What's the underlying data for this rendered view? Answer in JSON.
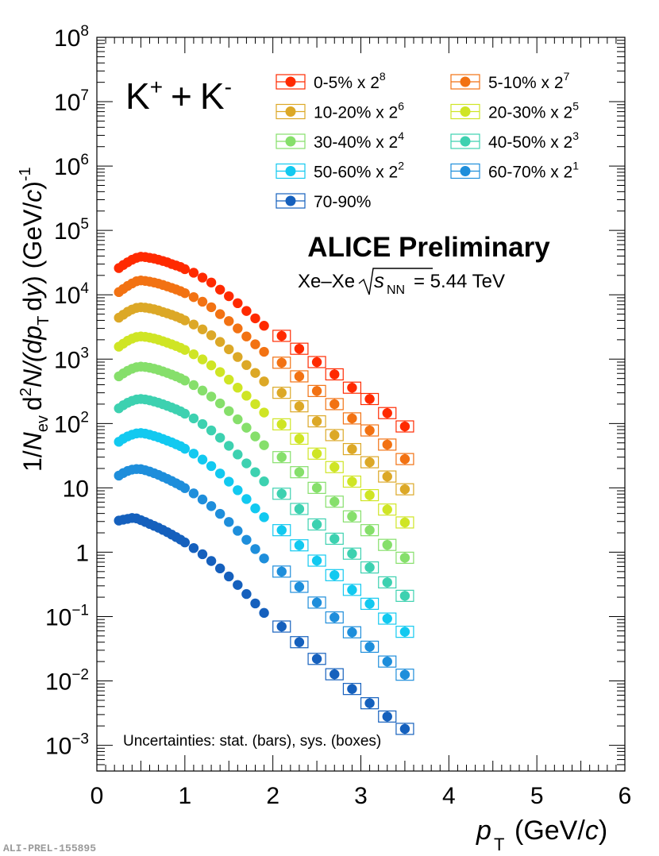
{
  "chart_data": {
    "type": "scatter",
    "title": "K+ + K-",
    "title_parts": {
      "a": "K",
      "a_sup": "+",
      "op": "+",
      "b": "K",
      "b_sup": "-"
    },
    "experiment": "ALICE Preliminary",
    "system": {
      "pre": "Xe–Xe",
      "s": "s",
      "s_sub": "NN",
      "post": "= 5.44 TeV"
    },
    "xlabel": {
      "p": "p",
      "sub": "T",
      "unit_pre": "(GeV/",
      "c": "c",
      "unit_post": ")"
    },
    "ylabel": {
      "one": "1/",
      "N": "N",
      "ev": "ev",
      "d": "d",
      "two": "2",
      "N2": "N/(d",
      "p": "p",
      "T": "T",
      "dy_pre": "d",
      "y": "y",
      "unit": ") (GeV/",
      "c": "c",
      "close": ")",
      "minus1": "-1"
    },
    "xlim": [
      0,
      6
    ],
    "ylim_log10": [
      -3.4,
      8
    ],
    "xticks": [
      {
        "v": 0,
        "label": "0"
      },
      {
        "v": 1,
        "label": "1"
      },
      {
        "v": 2,
        "label": "2"
      },
      {
        "v": 3,
        "label": "3"
      },
      {
        "v": 4,
        "label": "4"
      },
      {
        "v": 5,
        "label": "5"
      },
      {
        "v": 6,
        "label": "6"
      }
    ],
    "yticks": [
      {
        "e": 8,
        "base": "10",
        "sup": "8"
      },
      {
        "e": 7,
        "base": "10",
        "sup": "7"
      },
      {
        "e": 6,
        "base": "10",
        "sup": "6"
      },
      {
        "e": 5,
        "base": "10",
        "sup": "5"
      },
      {
        "e": 4,
        "base": "10",
        "sup": "4"
      },
      {
        "e": 3,
        "base": "10",
        "sup": "3"
      },
      {
        "e": 2,
        "base": "10",
        "sup": "2"
      },
      {
        "e": 1,
        "base": "10",
        "sup": ""
      },
      {
        "e": 0,
        "base": "1",
        "sup": ""
      },
      {
        "e": -1,
        "base": "10",
        "sup": "−1"
      },
      {
        "e": -2,
        "base": "10",
        "sup": "−2"
      },
      {
        "e": -3,
        "base": "10",
        "sup": "−3"
      }
    ],
    "x_points": [
      0.25,
      0.3,
      0.35,
      0.4,
      0.45,
      0.5,
      0.55,
      0.6,
      0.65,
      0.7,
      0.75,
      0.8,
      0.85,
      0.9,
      0.95,
      1.0,
      1.1,
      1.2,
      1.3,
      1.4,
      1.5,
      1.6,
      1.7,
      1.8,
      1.9,
      2.1,
      2.3,
      2.5,
      2.7,
      2.9,
      3.1,
      3.3,
      3.5
    ],
    "series": [
      {
        "name": "0-5% x 2",
        "sup": "8",
        "color": "#ff2a00",
        "values": [
          26000,
          29000,
          32000,
          35000,
          37500,
          39000,
          38500,
          37500,
          36500,
          35000,
          33500,
          32000,
          30000,
          28500,
          27000,
          25000,
          22000,
          18500,
          15500,
          12000,
          9500,
          7400,
          5600,
          4300,
          3300,
          2300,
          1450,
          900,
          580,
          360,
          240,
          145,
          90
        ],
        "sys_from_index": 25
      },
      {
        "name": "5-10% x 2",
        "sup": "7",
        "color": "#f27213",
        "values": [
          11000,
          12300,
          13700,
          15000,
          16200,
          16700,
          16400,
          16000,
          15500,
          14900,
          14200,
          13500,
          12800,
          12100,
          11400,
          10600,
          9200,
          7800,
          6400,
          5000,
          3900,
          3000,
          2250,
          1700,
          1300,
          880,
          540,
          320,
          200,
          120,
          78,
          47,
          28
        ],
        "sys_from_index": 25
      },
      {
        "name": "10-20% x 2",
        "sup": "6",
        "color": "#dca827",
        "values": [
          4400,
          4900,
          5450,
          5900,
          6250,
          6400,
          6300,
          6150,
          5950,
          5700,
          5400,
          5150,
          4880,
          4600,
          4320,
          4000,
          3450,
          2900,
          2350,
          1850,
          1420,
          1080,
          810,
          610,
          450,
          300,
          185,
          108,
          66,
          40,
          25,
          15,
          9.5
        ],
        "sys_from_index": 25
      },
      {
        "name": "20-30% x 2",
        "sup": "5",
        "color": "#cfe525",
        "values": [
          1560,
          1740,
          1930,
          2080,
          2200,
          2250,
          2220,
          2160,
          2090,
          2000,
          1900,
          1800,
          1700,
          1600,
          1500,
          1390,
          1190,
          990,
          800,
          630,
          480,
          360,
          270,
          200,
          148,
          97,
          58,
          34,
          21,
          12.5,
          7.7,
          4.6,
          2.9
        ],
        "sys_from_index": 25
      },
      {
        "name": "30-40% x 2",
        "sup": "4",
        "color": "#86df6b",
        "values": [
          540,
          600,
          660,
          710,
          750,
          765,
          755,
          735,
          710,
          680,
          645,
          610,
          575,
          540,
          505,
          465,
          395,
          325,
          262,
          205,
          156,
          116,
          86,
          63,
          46,
          30,
          17.5,
          10,
          6.1,
          3.6,
          2.2,
          1.3,
          0.82
        ],
        "sys_from_index": 25
      },
      {
        "name": "40-50% x 2",
        "sup": "3",
        "color": "#3dd1b0",
        "values": [
          172,
          192,
          210,
          225,
          236,
          240,
          236,
          229,
          220,
          210,
          199,
          188,
          177,
          166,
          155,
          142,
          120,
          98,
          78,
          60,
          45,
          33,
          24,
          17.5,
          12.6,
          8.1,
          4.7,
          2.7,
          1.62,
          0.95,
          0.58,
          0.34,
          0.21
        ],
        "sys_from_index": 25
      },
      {
        "name": "50-60% x 2",
        "sup": "2",
        "color": "#12c9f0",
        "values": [
          52,
          58,
          63,
          67,
          70,
          71,
          69.5,
          67,
          64,
          61,
          57.5,
          54,
          51,
          47.5,
          44.5,
          40.5,
          34,
          27.5,
          21.8,
          16.7,
          12.5,
          9.2,
          6.7,
          4.8,
          3.5,
          2.2,
          1.28,
          0.74,
          0.44,
          0.26,
          0.158,
          0.093,
          0.058
        ],
        "sys_from_index": 25
      },
      {
        "name": "60-70% x 2",
        "sup": "1",
        "color": "#1e8edb",
        "values": [
          15.5,
          17,
          18.3,
          19.2,
          19.6,
          19.5,
          18.8,
          17.9,
          16.9,
          15.9,
          14.8,
          13.8,
          12.8,
          11.8,
          10.9,
          9.9,
          8.2,
          6.6,
          5.2,
          3.95,
          2.95,
          2.15,
          1.56,
          1.12,
          0.8,
          0.5,
          0.29,
          0.165,
          0.097,
          0.057,
          0.034,
          0.02,
          0.0125
        ],
        "sys_from_index": 25
      },
      {
        "name": "70-90%",
        "sup": "",
        "color": "#1560bd",
        "values": [
          3.1,
          3.2,
          3.3,
          3.4,
          3.35,
          3.15,
          2.95,
          2.75,
          2.57,
          2.4,
          2.22,
          2.05,
          1.88,
          1.72,
          1.57,
          1.42,
          1.16,
          0.93,
          0.73,
          0.56,
          0.42,
          0.31,
          0.224,
          0.16,
          0.114,
          0.07,
          0.04,
          0.022,
          0.0127,
          0.0075,
          0.0045,
          0.0028,
          0.0018
        ],
        "sys_from_index": 25
      }
    ],
    "legend": [
      {
        "label": "0-5% x 2",
        "sup": "8"
      },
      {
        "label": "5-10% x 2",
        "sup": "7"
      },
      {
        "label": "10-20% x 2",
        "sup": "6"
      },
      {
        "label": "20-30% x 2",
        "sup": "5"
      },
      {
        "label": "30-40% x 2",
        "sup": "4"
      },
      {
        "label": "40-50% x 2",
        "sup": "3"
      },
      {
        "label": "50-60% x 2",
        "sup": "2"
      },
      {
        "label": "60-70% x 2",
        "sup": "1"
      },
      {
        "label": "70-90%",
        "sup": ""
      }
    ],
    "annotation": "Uncertainties: stat. (bars), sys. (boxes)",
    "id_label": "ALI-PREL-155895"
  }
}
